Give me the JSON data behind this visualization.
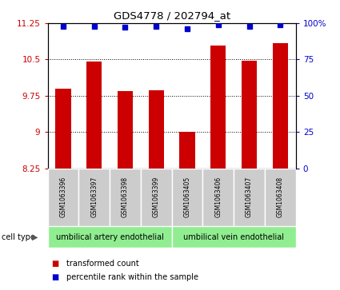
{
  "title": "GDS4778 / 202794_at",
  "samples": [
    "GSM1063396",
    "GSM1063397",
    "GSM1063398",
    "GSM1063399",
    "GSM1063405",
    "GSM1063406",
    "GSM1063407",
    "GSM1063408"
  ],
  "bar_values": [
    9.9,
    10.45,
    9.85,
    9.87,
    9.0,
    10.78,
    10.48,
    10.83
  ],
  "percentile_values": [
    98,
    98,
    97,
    98,
    96,
    99,
    98,
    99
  ],
  "ylim_left": [
    8.25,
    11.25
  ],
  "yticks_left": [
    8.25,
    9.0,
    9.75,
    10.5,
    11.25
  ],
  "ytick_labels_left": [
    "8.25",
    "9",
    "9.75",
    "10.5",
    "11.25"
  ],
  "ylim_right": [
    0,
    100
  ],
  "yticks_right": [
    0,
    25,
    50,
    75,
    100
  ],
  "ytick_labels_right": [
    "0",
    "25",
    "50",
    "75",
    "100%"
  ],
  "bar_color": "#CC0000",
  "dot_color": "#0000CC",
  "groups": [
    {
      "label": "umbilical artery endothelial",
      "start": 0,
      "end": 4
    },
    {
      "label": "umbilical vein endothelial",
      "start": 4,
      "end": 8
    }
  ],
  "cell_type_label": "cell type",
  "group_bg_color": "#90EE90",
  "sample_bg_color": "#CCCCCC",
  "legend_items": [
    {
      "color": "#CC0000",
      "label": "transformed count"
    },
    {
      "color": "#0000CC",
      "label": "percentile rank within the sample"
    }
  ],
  "bar_width": 0.5
}
